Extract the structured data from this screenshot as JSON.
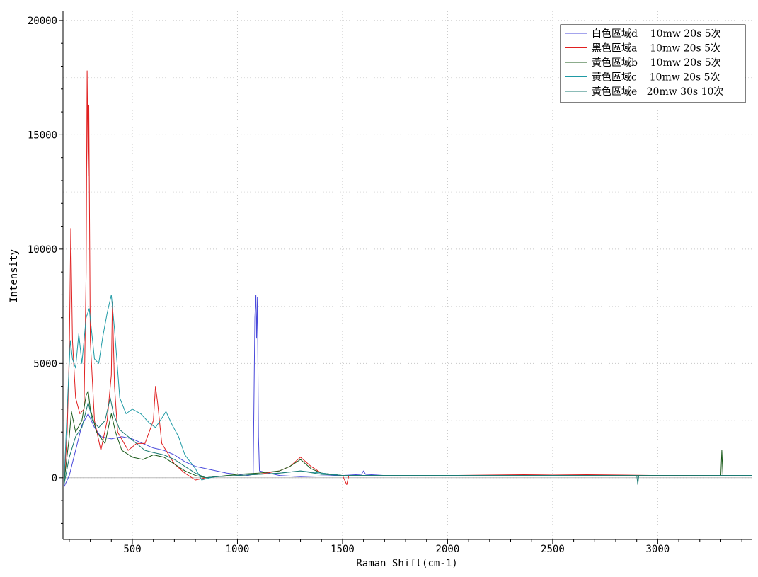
{
  "chart_data": {
    "type": "line",
    "title": "",
    "xlabel": "Raman Shift(cm-1)",
    "ylabel": "Intensity",
    "xlim": [
      170,
      3450
    ],
    "ylim": [
      -2700,
      20400
    ],
    "x_ticks": [
      500,
      1000,
      1500,
      2000,
      2500,
      3000
    ],
    "y_ticks": [
      0,
      5000,
      10000,
      15000,
      20000
    ],
    "grid": true,
    "legend_position": "top-right",
    "series": [
      {
        "name": "白色區域d    10mw 20s 5次",
        "color": "#4a4adb",
        "points": [
          [
            175,
            -400
          ],
          [
            200,
            100
          ],
          [
            230,
            1200
          ],
          [
            260,
            2300
          ],
          [
            290,
            2800
          ],
          [
            320,
            2200
          ],
          [
            350,
            1800
          ],
          [
            400,
            1700
          ],
          [
            450,
            1800
          ],
          [
            500,
            1700
          ],
          [
            550,
            1500
          ],
          [
            600,
            1300
          ],
          [
            650,
            1200
          ],
          [
            700,
            1000
          ],
          [
            750,
            700
          ],
          [
            800,
            500
          ],
          [
            850,
            400
          ],
          [
            900,
            300
          ],
          [
            950,
            200
          ],
          [
            1000,
            150
          ],
          [
            1050,
            100
          ],
          [
            1075,
            150
          ],
          [
            1083,
            7000
          ],
          [
            1088,
            8000
          ],
          [
            1091,
            6100
          ],
          [
            1095,
            7900
          ],
          [
            1100,
            1800
          ],
          [
            1105,
            300
          ],
          [
            1150,
            200
          ],
          [
            1200,
            100
          ],
          [
            1300,
            50
          ],
          [
            1400,
            80
          ],
          [
            1500,
            100
          ],
          [
            1590,
            150
          ],
          [
            1600,
            300
          ],
          [
            1610,
            150
          ],
          [
            1700,
            100
          ],
          [
            2000,
            100
          ],
          [
            2500,
            100
          ],
          [
            3000,
            100
          ],
          [
            3450,
            100
          ]
        ]
      },
      {
        "name": "黑色區域a    10mw 20s 5次",
        "color": "#e02020",
        "points": [
          [
            175,
            -300
          ],
          [
            190,
            2000
          ],
          [
            200,
            5500
          ],
          [
            207,
            10900
          ],
          [
            215,
            6000
          ],
          [
            230,
            3500
          ],
          [
            250,
            2800
          ],
          [
            270,
            3000
          ],
          [
            280,
            9000
          ],
          [
            285,
            17800
          ],
          [
            290,
            13200
          ],
          [
            293,
            16300
          ],
          [
            300,
            6000
          ],
          [
            320,
            2500
          ],
          [
            350,
            1200
          ],
          [
            380,
            2500
          ],
          [
            400,
            4500
          ],
          [
            405,
            7700
          ],
          [
            415,
            4000
          ],
          [
            430,
            2000
          ],
          [
            480,
            1200
          ],
          [
            520,
            1500
          ],
          [
            560,
            1500
          ],
          [
            600,
            2500
          ],
          [
            610,
            4000
          ],
          [
            620,
            3300
          ],
          [
            640,
            1500
          ],
          [
            700,
            600
          ],
          [
            750,
            200
          ],
          [
            800,
            -100
          ],
          [
            850,
            0
          ],
          [
            900,
            50
          ],
          [
            1000,
            100
          ],
          [
            1100,
            150
          ],
          [
            1200,
            300
          ],
          [
            1250,
            500
          ],
          [
            1300,
            900
          ],
          [
            1350,
            500
          ],
          [
            1400,
            200
          ],
          [
            1500,
            100
          ],
          [
            1520,
            -300
          ],
          [
            1530,
            100
          ],
          [
            2000,
            100
          ],
          [
            2500,
            150
          ],
          [
            3000,
            100
          ],
          [
            3450,
            100
          ]
        ]
      },
      {
        "name": "黃色區域b    10mw 20s 5次",
        "color": "#1a5a1a",
        "points": [
          [
            175,
            -200
          ],
          [
            200,
            1800
          ],
          [
            210,
            2900
          ],
          [
            230,
            2000
          ],
          [
            260,
            2500
          ],
          [
            280,
            3600
          ],
          [
            290,
            3800
          ],
          [
            300,
            3000
          ],
          [
            330,
            2000
          ],
          [
            370,
            1500
          ],
          [
            400,
            2800
          ],
          [
            420,
            2000
          ],
          [
            450,
            1200
          ],
          [
            500,
            900
          ],
          [
            550,
            800
          ],
          [
            600,
            1000
          ],
          [
            650,
            900
          ],
          [
            700,
            600
          ],
          [
            750,
            300
          ],
          [
            800,
            100
          ],
          [
            850,
            0
          ],
          [
            900,
            50
          ],
          [
            1000,
            150
          ],
          [
            1100,
            200
          ],
          [
            1200,
            300
          ],
          [
            1250,
            500
          ],
          [
            1300,
            800
          ],
          [
            1350,
            400
          ],
          [
            1400,
            200
          ],
          [
            1500,
            100
          ],
          [
            2000,
            100
          ],
          [
            2500,
            100
          ],
          [
            3000,
            100
          ],
          [
            3300,
            100
          ],
          [
            3305,
            1200
          ],
          [
            3310,
            100
          ],
          [
            3450,
            100
          ]
        ]
      },
      {
        "name": "黃色區域c    10mw 20s 5次",
        "color": "#1f9aa5",
        "points": [
          [
            175,
            -200
          ],
          [
            190,
            3000
          ],
          [
            205,
            6000
          ],
          [
            215,
            5200
          ],
          [
            230,
            4800
          ],
          [
            245,
            6300
          ],
          [
            260,
            5000
          ],
          [
            280,
            7000
          ],
          [
            295,
            7400
          ],
          [
            320,
            5200
          ],
          [
            340,
            5000
          ],
          [
            360,
            6200
          ],
          [
            380,
            7200
          ],
          [
            400,
            8000
          ],
          [
            415,
            6500
          ],
          [
            440,
            3500
          ],
          [
            470,
            2800
          ],
          [
            500,
            3000
          ],
          [
            540,
            2800
          ],
          [
            580,
            2400
          ],
          [
            610,
            2200
          ],
          [
            640,
            2600
          ],
          [
            660,
            2900
          ],
          [
            690,
            2300
          ],
          [
            720,
            1800
          ],
          [
            750,
            1000
          ],
          [
            800,
            400
          ],
          [
            830,
            -100
          ],
          [
            870,
            0
          ],
          [
            900,
            50
          ],
          [
            1000,
            100
          ],
          [
            1100,
            150
          ],
          [
            1200,
            200
          ],
          [
            1300,
            300
          ],
          [
            1400,
            200
          ],
          [
            1500,
            100
          ],
          [
            2000,
            100
          ],
          [
            2500,
            100
          ],
          [
            3000,
            80
          ],
          [
            3450,
            100
          ]
        ]
      },
      {
        "name": "黃色區域e   20mw 30s 10次",
        "color": "#1a7a72",
        "points": [
          [
            175,
            -300
          ],
          [
            200,
            900
          ],
          [
            230,
            1800
          ],
          [
            260,
            2200
          ],
          [
            290,
            3300
          ],
          [
            310,
            2500
          ],
          [
            340,
            2200
          ],
          [
            370,
            2500
          ],
          [
            395,
            3500
          ],
          [
            410,
            2800
          ],
          [
            440,
            2100
          ],
          [
            480,
            1800
          ],
          [
            520,
            1500
          ],
          [
            560,
            1200
          ],
          [
            600,
            1100
          ],
          [
            650,
            1000
          ],
          [
            700,
            800
          ],
          [
            750,
            500
          ],
          [
            800,
            200
          ],
          [
            850,
            0
          ],
          [
            900,
            50
          ],
          [
            1000,
            100
          ],
          [
            1100,
            150
          ],
          [
            1200,
            200
          ],
          [
            1300,
            300
          ],
          [
            1400,
            150
          ],
          [
            1500,
            100
          ],
          [
            2000,
            100
          ],
          [
            2500,
            100
          ],
          [
            2900,
            100
          ],
          [
            2905,
            -300
          ],
          [
            2910,
            100
          ],
          [
            3450,
            100
          ]
        ]
      }
    ]
  }
}
